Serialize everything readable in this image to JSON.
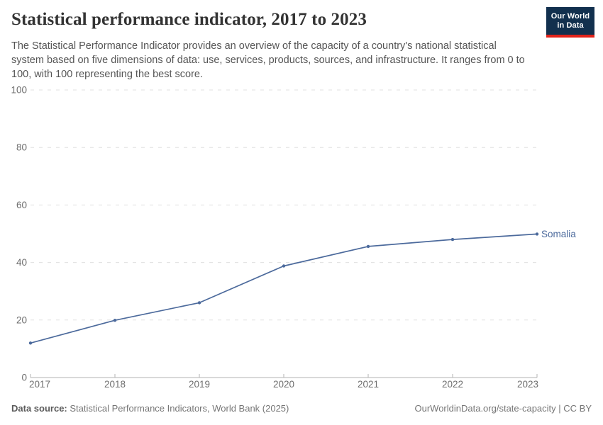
{
  "header": {
    "title": "Statistical performance indicator, 2017 to 2023",
    "subtitle": "The Statistical Performance Indicator provides an overview of the capacity of a country's national statistical system based on five dimensions of data: use, services, products, sources, and infrastructure. It ranges from 0 to 100, with 100 representing the best score.",
    "logo": {
      "line1": "Our World",
      "line2": "in Data",
      "bg_color": "#12304e",
      "bar_color": "#e2231a"
    }
  },
  "chart_data": {
    "type": "line",
    "title": "Statistical performance indicator, 2017 to 2023",
    "x": [
      2017,
      2018,
      2019,
      2020,
      2021,
      2022,
      2023
    ],
    "series": [
      {
        "name": "Somalia",
        "values": [
          12,
          19.9,
          26,
          38.8,
          45.6,
          48,
          49.9
        ],
        "color": "#4c6a9c"
      }
    ],
    "xlabel": "",
    "ylabel": "",
    "ylim": [
      0,
      100
    ],
    "yticks": [
      0,
      20,
      40,
      60,
      80,
      100
    ],
    "grid": "horizontal-dashed",
    "legend": "series-end-label",
    "colors": {
      "gridline": "#e0e0e0",
      "axis_line": "#b3b3b3",
      "tick_label": "#6e6e6e"
    }
  },
  "footer": {
    "data_source_label": "Data source:",
    "data_source_text": " Statistical Performance Indicators, World Bank (2025)",
    "credit": "OurWorldinData.org/state-capacity | CC BY"
  }
}
